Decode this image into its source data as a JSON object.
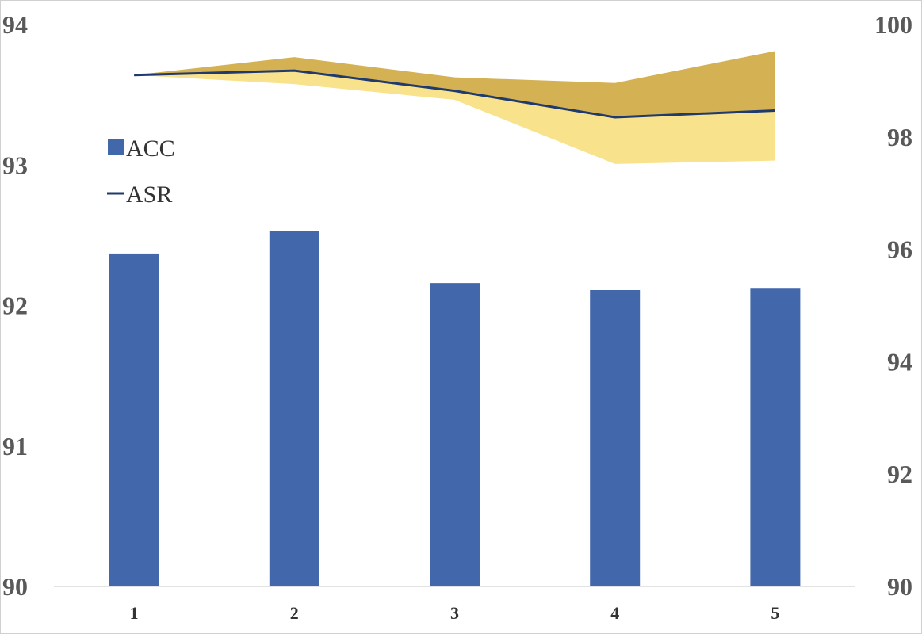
{
  "chart_data": {
    "type": "bar",
    "categories": [
      "1",
      "2",
      "3",
      "4",
      "5"
    ],
    "series": [
      {
        "name": "ACC",
        "type": "bar",
        "axis": "left",
        "values": [
          92.37,
          92.53,
          92.16,
          92.11,
          92.12
        ]
      },
      {
        "name": "ASR",
        "type": "line",
        "axis": "right",
        "values": [
          99.1,
          99.18,
          98.82,
          98.35,
          98.47
        ],
        "band_upper": [
          99.1,
          99.42,
          99.06,
          98.96,
          99.53
        ],
        "band_lower": [
          99.1,
          98.94,
          98.66,
          97.52,
          97.58
        ]
      }
    ],
    "left_axis": {
      "ylim": [
        90,
        94
      ],
      "ticks": [
        "90",
        "91",
        "92",
        "93",
        "94"
      ]
    },
    "right_axis": {
      "ylim": [
        90,
        100
      ],
      "ticks": [
        "90",
        "92",
        "94",
        "96",
        "98",
        "100"
      ]
    },
    "legend_placement": "upper-left",
    "grid": false,
    "colors": {
      "bar": "#4267AB",
      "line": "#1F3A6E",
      "band_upper": "#D4B152",
      "band_lower": "#F9E28C",
      "axis": "#D9D9D9"
    }
  }
}
